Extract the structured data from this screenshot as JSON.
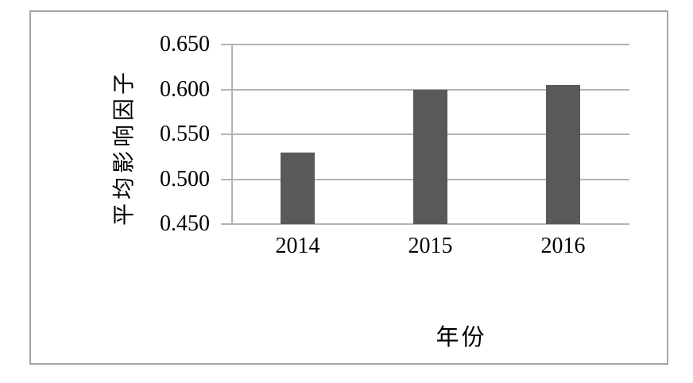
{
  "figure": {
    "background_color": "#FFFFFF",
    "frame_border_color": "#A6A6A6"
  },
  "chart_data": {
    "type": "bar",
    "title": "",
    "categories": [
      "2014",
      "2015",
      "2016"
    ],
    "values": [
      0.53,
      0.6,
      0.605
    ],
    "xlabel": "年份",
    "ylabel": "平均影响因子",
    "ylim": [
      0.45,
      0.65
    ],
    "ytick_step": 0.05,
    "yticks": [
      "0.650",
      "0.600",
      "0.550",
      "0.500",
      "0.450"
    ],
    "grid": "horizontal-only",
    "legend": "none",
    "bar_color": "#595959",
    "gridline_color": "#B3B3B3",
    "axis_color": "#B3B3B3",
    "text_color": "#000000"
  }
}
